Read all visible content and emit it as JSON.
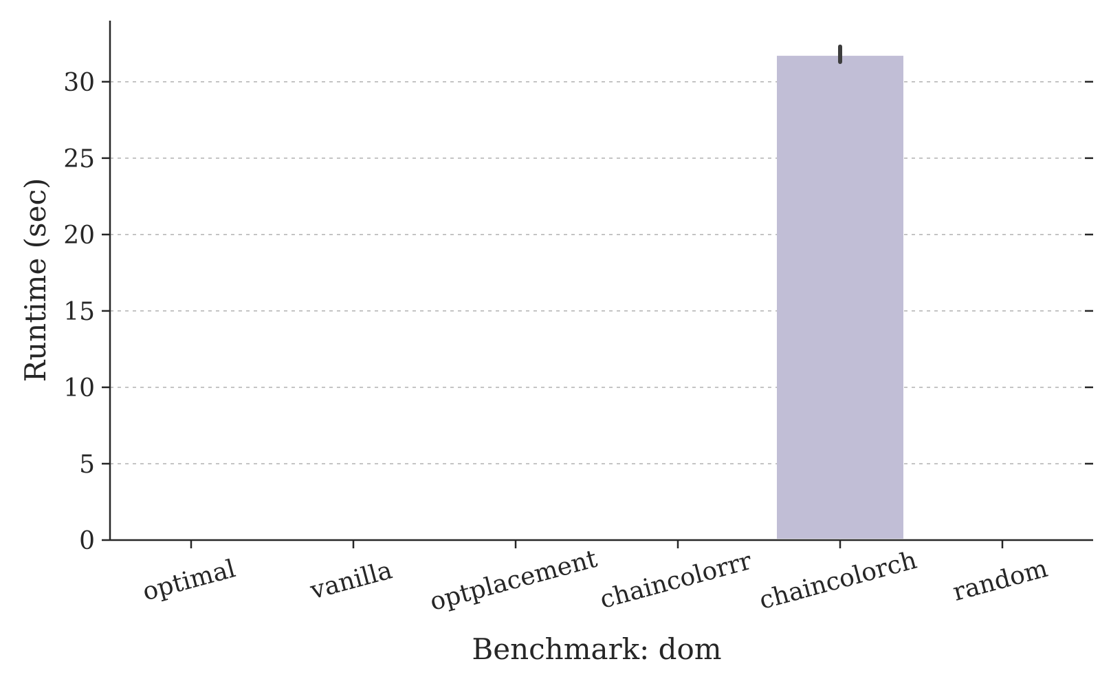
{
  "chart_data": {
    "type": "bar",
    "title": "",
    "xlabel": "Benchmark: dom",
    "ylabel": "Runtime (sec)",
    "categories": [
      "optimal",
      "vanilla",
      "optplacement",
      "chaincolorrr",
      "chaincolorch",
      "random"
    ],
    "values": [
      0,
      0,
      0,
      0,
      31.7,
      0
    ],
    "error_bars": [
      null,
      null,
      null,
      null,
      [
        31.3,
        32.3
      ],
      null
    ],
    "ylim": [
      0,
      34
    ],
    "yticks": [
      0,
      5,
      10,
      15,
      20,
      25,
      30
    ],
    "ytick_labels": [
      "0",
      "5",
      "10",
      "15",
      "20",
      "25",
      "30"
    ],
    "grid": "y-dashed",
    "legend": "none",
    "colors": {
      "bar": "#c1bed6",
      "axis": "#262626",
      "grid": "#b0b0b0",
      "error": "#3d3d3d"
    }
  }
}
